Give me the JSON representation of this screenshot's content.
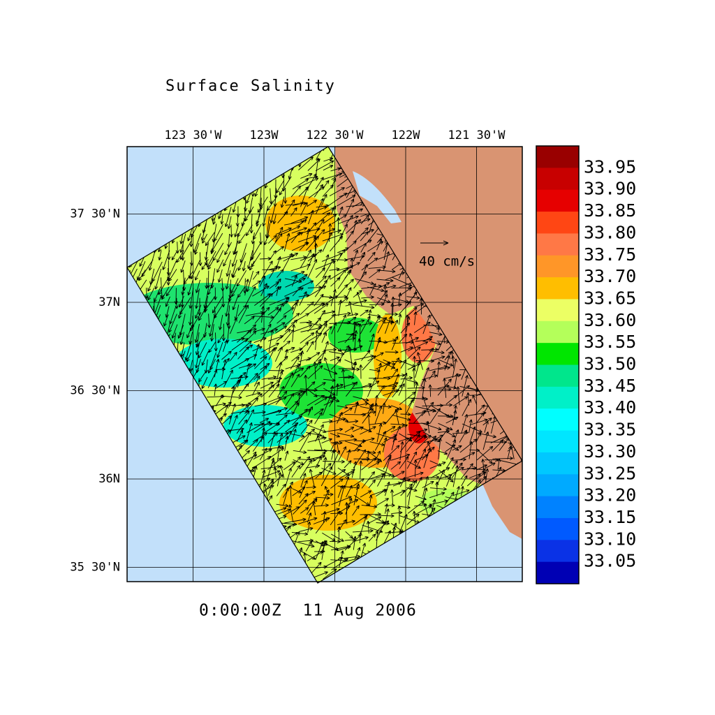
{
  "title": "Surface Salinity",
  "lon_ticks": [
    {
      "value": -123.5,
      "label": "123 30'W"
    },
    {
      "value": -123,
      "label": "123W"
    },
    {
      "value": -122.5,
      "label": "122 30'W"
    },
    {
      "value": -122,
      "label": "122W"
    },
    {
      "value": -121.5,
      "label": "121 30'W"
    }
  ],
  "lat_ticks": [
    {
      "value": 37.5,
      "label": "37 30'N"
    },
    {
      "value": 37,
      "label": "37N"
    },
    {
      "value": 36.5,
      "label": "36 30'N"
    },
    {
      "value": 36,
      "label": "36N"
    },
    {
      "value": 35.5,
      "label": "35 30'N"
    }
  ],
  "colorbar": {
    "levels": [
      33.95,
      {
        "value": 33.9,
        "label": "33.90"
      },
      33.85,
      {
        "value": 33.8,
        "label": "33.80"
      },
      33.75,
      {
        "value": 33.7,
        "label": "33.70"
      },
      33.65,
      {
        "value": 33.6,
        "label": "33.60"
      },
      33.55,
      {
        "value": 33.5,
        "label": "33.50"
      },
      33.45,
      {
        "value": 33.4,
        "label": "33.40"
      },
      33.35,
      {
        "value": 33.3,
        "label": "33.30"
      },
      33.25,
      {
        "value": 33.2,
        "label": "33.20"
      },
      33.15,
      {
        "value": 33.1,
        "label": "33.10"
      },
      33.05
    ],
    "colors": [
      "#990000",
      "#c80000",
      "#e60000",
      "#ff4614",
      "#ff7846",
      "#ff9628",
      "#ffbe00",
      "#ecff64",
      "#b4ff5a",
      "#00e600",
      "#00e68c",
      "#00f0c8",
      "#00ffff",
      "#00e6ff",
      "#00c8ff",
      "#00aaff",
      "#0082ff",
      "#005aff",
      "#0a32e6",
      "#0000b4"
    ]
  },
  "reference_vector": "40 cm/s",
  "timestamp": "0:00:00Z  11 Aug 2006"
}
